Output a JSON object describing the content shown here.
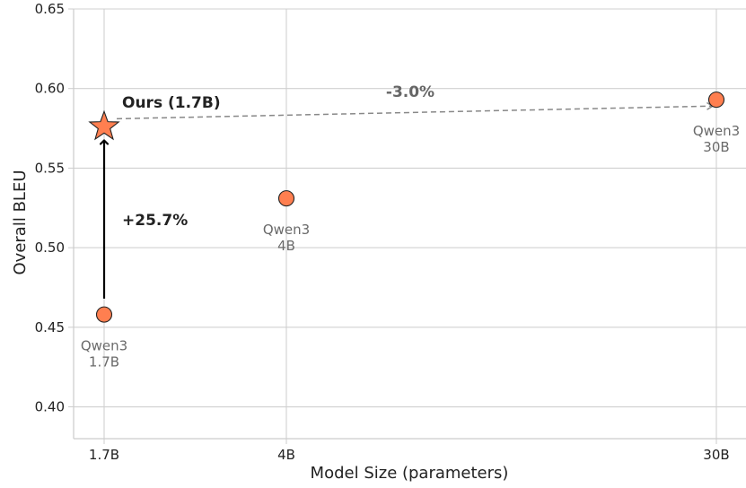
{
  "chart_data": {
    "type": "scatter",
    "title": "",
    "xlabel": "Model Size (parameters)",
    "ylabel": "Overall BLEU",
    "x_categories": [
      "1.7B",
      "4B",
      "30B"
    ],
    "ylim": [
      0.38,
      0.65
    ],
    "y_ticks": [
      "0.40",
      "0.45",
      "0.50",
      "0.55",
      "0.60",
      "0.65"
    ],
    "grid": true,
    "colors": {
      "marker_fill": "#FF7F50",
      "marker_edge": "#222222",
      "grid": "#d0d0d0",
      "axis": "#cccccc",
      "annotation_label": "#6a6a6a",
      "improvement_arrow": "#000000",
      "comparison_arrow": "#888888",
      "bold_text": "#222222",
      "comparison_text": "#666666"
    },
    "points": [
      {
        "x": "1.7B",
        "y": 0.458,
        "label": [
          "Qwen3",
          "1.7B"
        ],
        "marker": "circle"
      },
      {
        "x": "4B",
        "y": 0.531,
        "label": [
          "Qwen3",
          "4B"
        ],
        "marker": "circle"
      },
      {
        "x": "30B",
        "y": 0.593,
        "label": [
          "Qwen3",
          "30B"
        ],
        "marker": "circle"
      },
      {
        "x": "1.7B",
        "y": 0.576,
        "label": [
          "Ours (1.7B)"
        ],
        "marker": "star"
      }
    ],
    "annotations": {
      "improvement": {
        "text": "+25.7%",
        "from_y": 0.468,
        "to_y": 0.568,
        "x": "1.7B"
      },
      "comparison": {
        "text": "-3.0%",
        "from": {
          "x": "1.7B",
          "y": 0.581
        },
        "to": {
          "x": "30B",
          "y": 0.589
        }
      }
    }
  }
}
